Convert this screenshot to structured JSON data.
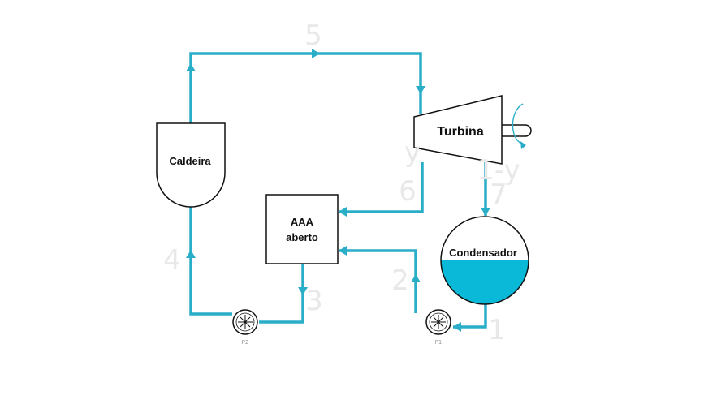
{
  "components": {
    "boiler": "Caldeira",
    "turbine": "Turbina",
    "heater_line1": "AAA",
    "heater_line2": "aberto",
    "condenser": "Condensador",
    "pump_1": "P1",
    "pump_2": "P2"
  },
  "states": {
    "s1": "1",
    "s2": "2",
    "s3": "3",
    "s4": "4",
    "s5": "5",
    "s6": "6",
    "s7": "7",
    "y_mark": "y",
    "one_minus_y": "1-y"
  },
  "colors": {
    "pipe": "#2aaec8",
    "water": "#0ab8d8",
    "outline": "#111111",
    "state_label": "#e8e8e8"
  }
}
